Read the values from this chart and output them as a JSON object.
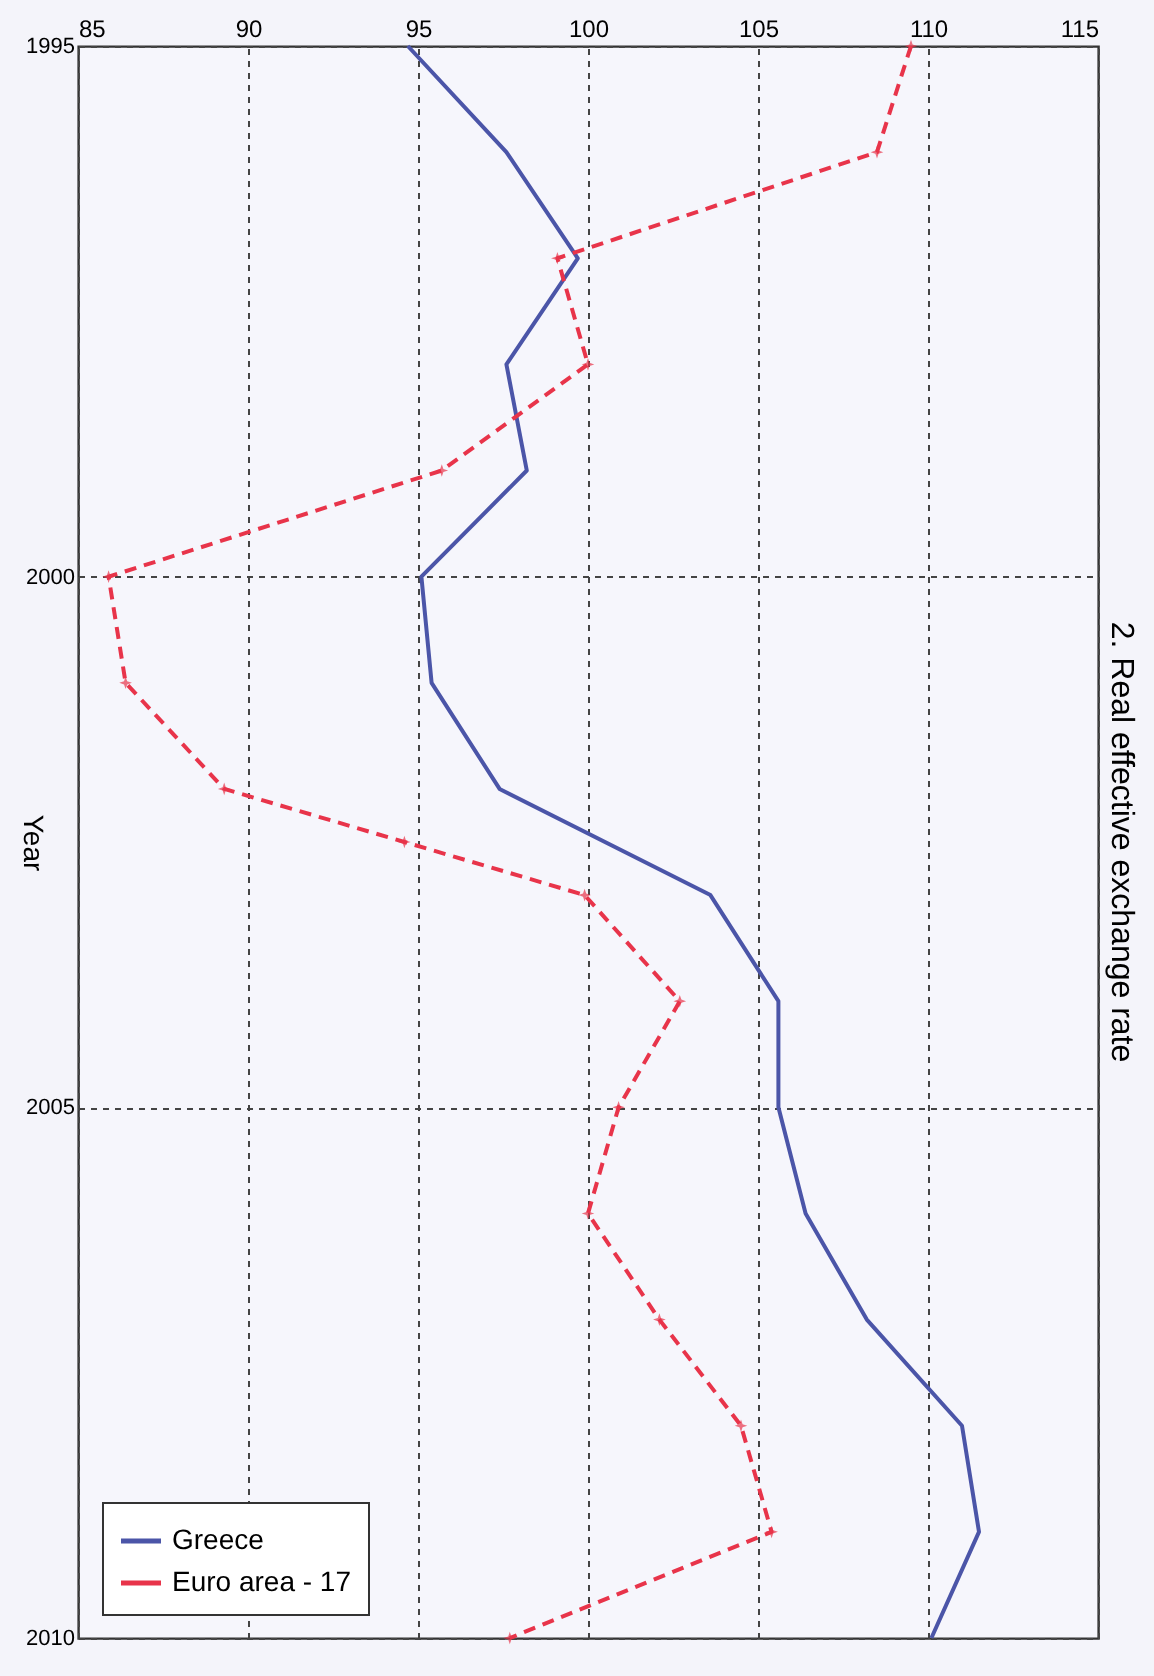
{
  "chart_data": {
    "type": "line",
    "title": "2. Real effective exchange rate",
    "ylabel": "Year",
    "ylim": [
      2010,
      1995
    ],
    "yticks": [
      1995,
      2000,
      2005,
      2010
    ],
    "xlim": [
      85,
      115
    ],
    "xticks": [
      85,
      90,
      95,
      100,
      105,
      110,
      115
    ],
    "grid": true,
    "legend": "bottom left",
    "series": [
      {
        "name": "Greece",
        "color": "#4b55a8",
        "line_style": "solid",
        "marker": "none",
        "values": [
          1995,
          1996,
          1997,
          1998,
          1999,
          2000,
          2001,
          2002,
          2003,
          2004,
          2005,
          2006,
          2007,
          2008,
          2009,
          2010
        ],
        "x": [
          94.7,
          97.6,
          99.7,
          97.6,
          98.2,
          95.1,
          95.4,
          97.4,
          103.6,
          105.6,
          105.6,
          106.4,
          108.2,
          111.0,
          111.5,
          110.1
        ]
      },
      {
        "name": "Euro area - 17",
        "color": "#e8344a",
        "line_style": "dashed",
        "marker": "star",
        "values": [
          1995,
          1996,
          1997,
          1998,
          1999,
          2000,
          2001,
          2002,
          2002.5,
          2003,
          2004,
          2005,
          2006,
          2007,
          2008,
          2009,
          2010
        ],
        "x": [
          109.5,
          108.5,
          99.1,
          100.0,
          95.7,
          85.9,
          86.4,
          89.3,
          94.6,
          99.9,
          102.7,
          100.9,
          100.0,
          102.1,
          104.5,
          105.4,
          97.7
        ]
      }
    ]
  }
}
